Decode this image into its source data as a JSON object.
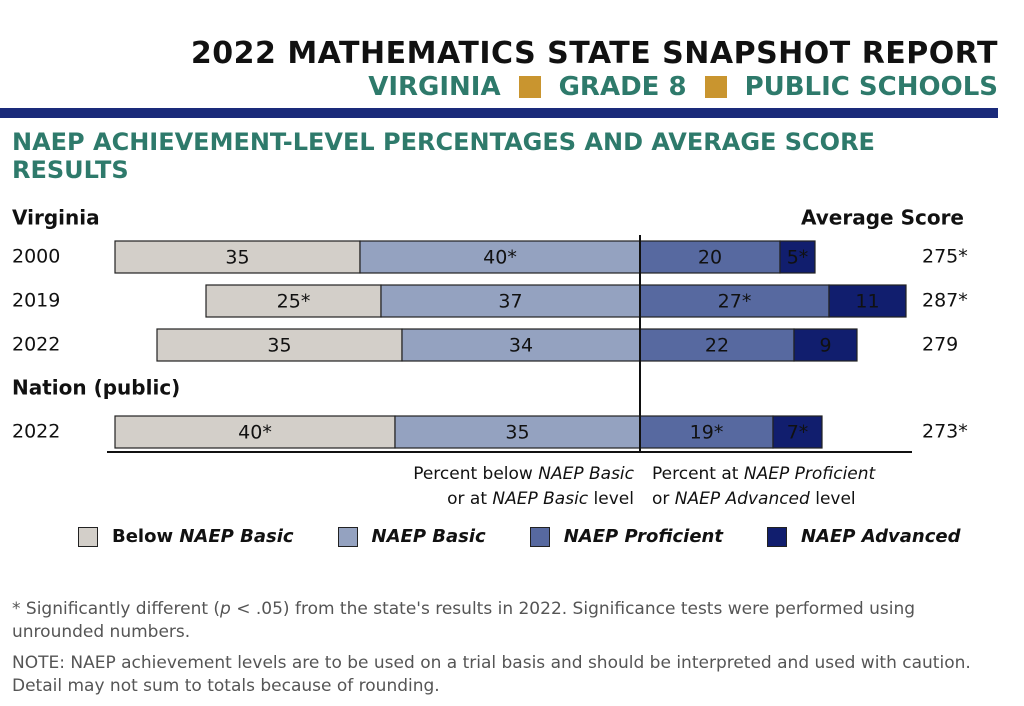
{
  "header": {
    "title": "2022 MATHEMATICS STATE SNAPSHOT REPORT",
    "subtitle_parts": [
      "VIRGINIA",
      "GRADE 8",
      "PUBLIC SCHOOLS"
    ]
  },
  "section_title": "NAEP ACHIEVEMENT-LEVEL PERCENTAGES AND AVERAGE SCORE RESULTS",
  "colors": {
    "below_basic": "#d3cfc9",
    "basic": "#94a2c0",
    "proficient": "#5769a0",
    "advanced": "#111e6e",
    "teal": "#2e7a6b",
    "gold": "#c9952f",
    "navy_rule": "#1a2a7a"
  },
  "chart_data": {
    "type": "bar",
    "orientation": "horizontal-diverging",
    "groups": [
      {
        "name": "Virginia",
        "rows": [
          {
            "year": "2000",
            "below_basic": 35,
            "basic": 40,
            "proficient": 20,
            "advanced": 5,
            "below_basic_label": "35",
            "basic_label": "40*",
            "proficient_label": "20",
            "advanced_label": "5*",
            "average_score": "275*"
          },
          {
            "year": "2019",
            "below_basic": 25,
            "basic": 37,
            "proficient": 27,
            "advanced": 11,
            "below_basic_label": "25*",
            "basic_label": "37",
            "proficient_label": "27*",
            "advanced_label": "11",
            "average_score": "287*"
          },
          {
            "year": "2022",
            "below_basic": 35,
            "basic": 34,
            "proficient": 22,
            "advanced": 9,
            "below_basic_label": "35",
            "basic_label": "34",
            "proficient_label": "22",
            "advanced_label": "9",
            "average_score": "279"
          }
        ]
      },
      {
        "name": "Nation (public)",
        "rows": [
          {
            "year": "2022",
            "below_basic": 40,
            "basic": 35,
            "proficient": 19,
            "advanced": 7,
            "below_basic_label": "40*",
            "basic_label": "35",
            "proficient_label": "19*",
            "advanced_label": "7*",
            "average_score": "273*"
          }
        ]
      }
    ],
    "average_score_header": "Average Score",
    "axis_note_left": {
      "line1_pre": "Percent below ",
      "line1_em": "NAEP Basic",
      "line2_pre": "or at ",
      "line2_em": "NAEP Basic",
      "line2_post": " level"
    },
    "axis_note_right": {
      "line1_pre": "Percent at ",
      "line1_em": "NAEP Proficient",
      "line2_pre": "or ",
      "line2_em": "NAEP Advanced",
      "line2_post": " level"
    },
    "legend": [
      {
        "key": "below_basic",
        "prefix": "Below ",
        "label": "NAEP Basic"
      },
      {
        "key": "basic",
        "prefix": "",
        "label": "NAEP Basic"
      },
      {
        "key": "proficient",
        "prefix": "",
        "label": "NAEP Proficient"
      },
      {
        "key": "advanced",
        "prefix": "",
        "label": "NAEP Advanced"
      }
    ]
  },
  "notes": {
    "significance_pre": "*  Significantly different (",
    "significance_p": "p",
    "significance_post": " < .05) from the state's results in 2022. Significance tests were performed using unrounded numbers.",
    "note": "NOTE:  NAEP achievement levels are to be used on a trial basis and should be interpreted and used with caution. Detail may not sum to totals because of rounding."
  }
}
